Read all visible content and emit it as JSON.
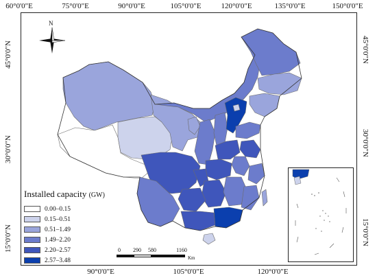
{
  "axes": {
    "top_ticks": [
      "60°0'0\"E",
      "75°0'0\"E",
      "90°0'0\"E",
      "105°0'0\"E",
      "120°0'0\"E",
      "135°0'0\"E",
      "150°0'0\"E"
    ],
    "bottom_ticks": [
      "90°0'0\"E",
      "105°0'0\"E",
      "120°0'0\"E"
    ],
    "left_ticks": [
      "45°0'0\"N",
      "30°0'0\"N",
      "15°0'0\"N"
    ],
    "right_ticks": [
      "45°0'0\"N",
      "30°0'0\"N",
      "15°0'0\"N"
    ]
  },
  "north_arrow": {
    "label": "N",
    "icon": "compass-rose-icon"
  },
  "legend": {
    "title": "Installed capacity",
    "unit": "(GW)",
    "classes": [
      {
        "label": "0.00–0.15",
        "color": "#ffffff"
      },
      {
        "label": "0.15–0.51",
        "color": "#cdd3ec"
      },
      {
        "label": "0.51–1.49",
        "color": "#9aa5dc"
      },
      {
        "label": "1.49–2.20",
        "color": "#6c7ccc"
      },
      {
        "label": "2.20–2.57",
        "color": "#3f56bb"
      },
      {
        "label": "2.57–3.48",
        "color": "#0b3fae"
      }
    ]
  },
  "scalebar": {
    "labels": [
      "0",
      "290",
      "580",
      "1160"
    ],
    "unit": "Km"
  },
  "colors": {
    "border": "#6b6b6b",
    "outline": "#222222"
  }
}
